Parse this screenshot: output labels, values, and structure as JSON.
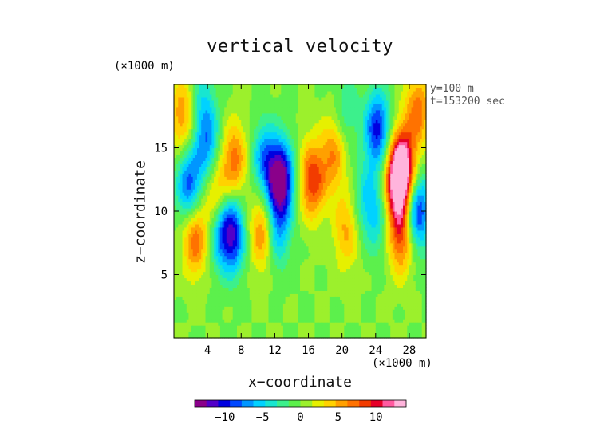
{
  "title": "vertical velocity",
  "x_unit": "(×1000 m)",
  "y_unit": "(×1000 m)",
  "xlabel": "x−coordinate",
  "ylabel": "z−coordinate",
  "info": {
    "line1": "y=100 m",
    "line2": "t=153200 sec"
  },
  "chart_data": {
    "type": "heatmap",
    "title": "vertical velocity",
    "xlabel": "x−coordinate",
    "ylabel": "z−coordinate",
    "x_unit": "×1000 m",
    "y_unit": "×1000 m",
    "xlim": [
      0,
      30
    ],
    "ylim": [
      0,
      20
    ],
    "xticks": [
      4,
      8,
      12,
      16,
      20,
      24,
      28
    ],
    "yticks": [
      5,
      10,
      15
    ],
    "colorbar": {
      "range": [
        -14,
        14
      ],
      "ticks": [
        -10,
        -5,
        0,
        5,
        10
      ]
    },
    "features": [
      {
        "x": 1.0,
        "z": 17.5,
        "value": 6
      },
      {
        "x": 2.5,
        "z": 8.0,
        "value": 8
      },
      {
        "x": 1.8,
        "z": 12.0,
        "value": -9
      },
      {
        "x": 4.0,
        "z": 15.0,
        "value": -7
      },
      {
        "x": 5.0,
        "z": 11.5,
        "value": 6
      },
      {
        "x": 5.5,
        "z": 8.5,
        "value": -6
      },
      {
        "x": 7.0,
        "z": 8.2,
        "value": -10
      },
      {
        "x": 7.2,
        "z": 14.0,
        "value": 7
      },
      {
        "x": 10.5,
        "z": 8.5,
        "value": 7
      },
      {
        "x": 10.8,
        "z": 14.0,
        "value": -7
      },
      {
        "x": 12.7,
        "z": 12.5,
        "value": -14
      },
      {
        "x": 12.3,
        "z": 8.5,
        "value": -6
      },
      {
        "x": 16.5,
        "z": 12.5,
        "value": 9
      },
      {
        "x": 19.0,
        "z": 14.5,
        "value": 6
      },
      {
        "x": 20.5,
        "z": 8.5,
        "value": 5
      },
      {
        "x": 20.5,
        "z": 17.8,
        "value": -3
      },
      {
        "x": 22.8,
        "z": 11.0,
        "value": -4
      },
      {
        "x": 24.2,
        "z": 16.5,
        "value": -10
      },
      {
        "x": 24.2,
        "z": 9.5,
        "value": -4
      },
      {
        "x": 26.5,
        "z": 12.0,
        "value": 10
      },
      {
        "x": 27.2,
        "z": 13.5,
        "value": 13
      },
      {
        "x": 27.0,
        "z": 8.0,
        "value": 8
      },
      {
        "x": 29.0,
        "z": 10.0,
        "value": -10
      },
      {
        "x": 29.0,
        "z": 18.0,
        "value": 7
      },
      {
        "x": 3.5,
        "z": 18.5,
        "value": -4
      }
    ]
  }
}
